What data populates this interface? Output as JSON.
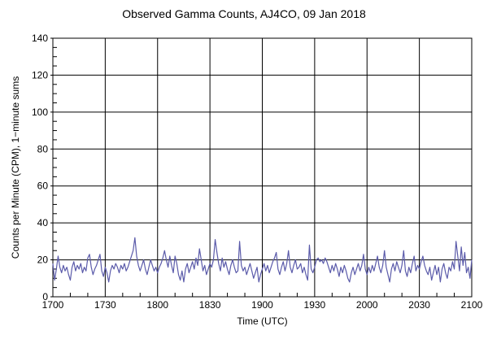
{
  "page": {
    "background": "#ffffff"
  },
  "chart_data": {
    "type": "line",
    "title": "Observed Gamma Counts, AJ4CO, 09 Jan 2018",
    "xlabel": "Time (UTC)",
    "ylabel": "Counts per Minute (CPM), 1−minute sums",
    "grid": true,
    "legend": "none",
    "axis_color": "#000000",
    "grid_color": "#000000",
    "line_color": "#5b5baa",
    "ylim": [
      0,
      140
    ],
    "y_major_ticks": [
      0,
      20,
      40,
      60,
      80,
      100,
      120,
      140
    ],
    "y_minor_step": 5,
    "x_range_minutes": [
      0,
      240
    ],
    "x_minor_step_minutes": 10,
    "x_ticks": [
      {
        "minutes": 0,
        "label": "1700"
      },
      {
        "minutes": 30,
        "label": "1730"
      },
      {
        "minutes": 60,
        "label": "1800"
      },
      {
        "minutes": 90,
        "label": "1830"
      },
      {
        "minutes": 120,
        "label": "1900"
      },
      {
        "minutes": 150,
        "label": "1930"
      },
      {
        "minutes": 180,
        "label": "2000"
      },
      {
        "minutes": 210,
        "label": "2030"
      },
      {
        "minutes": 240,
        "label": "2100"
      }
    ],
    "series": [
      {
        "name": "Observed gamma counts, 1-minute sums (CPM)",
        "start_label": "1700",
        "step_minutes": 1,
        "values": [
          18,
          9,
          15,
          22,
          16,
          13,
          17,
          14,
          16,
          12,
          9,
          16,
          19,
          14,
          17,
          15,
          18,
          13,
          16,
          14,
          21,
          23,
          16,
          12,
          15,
          17,
          20,
          23,
          14,
          11,
          16,
          13,
          8,
          14,
          17,
          15,
          18,
          16,
          13,
          17,
          15,
          18,
          14,
          16,
          19,
          22,
          25,
          32,
          22,
          17,
          14,
          17,
          20,
          15,
          12,
          16,
          20,
          17,
          14,
          16,
          13,
          16,
          18,
          21,
          25,
          20,
          16,
          22,
          17,
          13,
          22,
          18,
          12,
          9,
          14,
          8,
          15,
          18,
          13,
          16,
          19,
          15,
          21,
          17,
          26,
          20,
          14,
          17,
          12,
          15,
          18,
          16,
          20,
          31,
          24,
          18,
          14,
          21,
          16,
          19,
          15,
          12,
          17,
          20,
          16,
          13,
          14,
          30,
          17,
          14,
          16,
          12,
          15,
          18,
          14,
          10,
          13,
          16,
          8,
          12,
          15,
          18,
          14,
          17,
          13,
          16,
          19,
          21,
          24,
          15,
          12,
          16,
          19,
          14,
          18,
          25,
          16,
          13,
          17,
          20,
          15,
          16,
          18,
          13,
          16,
          12,
          9,
          28,
          15,
          13,
          16,
          20,
          21,
          19,
          20,
          18,
          21,
          19,
          16,
          13,
          17,
          14,
          18,
          15,
          11,
          16,
          13,
          17,
          14,
          10,
          8,
          13,
          16,
          12,
          15,
          18,
          14,
          17,
          23,
          15,
          12,
          16,
          13,
          17,
          14,
          18,
          22,
          16,
          13,
          17,
          25,
          16,
          12,
          8,
          15,
          18,
          14,
          19,
          16,
          13,
          17,
          25,
          14,
          11,
          16,
          13,
          18,
          22,
          14,
          17,
          15,
          19,
          22,
          17,
          14,
          12,
          16,
          9,
          13,
          17,
          12,
          16,
          8,
          15,
          18,
          13,
          10,
          16,
          14,
          19,
          15,
          30,
          22,
          14,
          27,
          17,
          24,
          13,
          16,
          10,
          20
        ]
      }
    ]
  }
}
